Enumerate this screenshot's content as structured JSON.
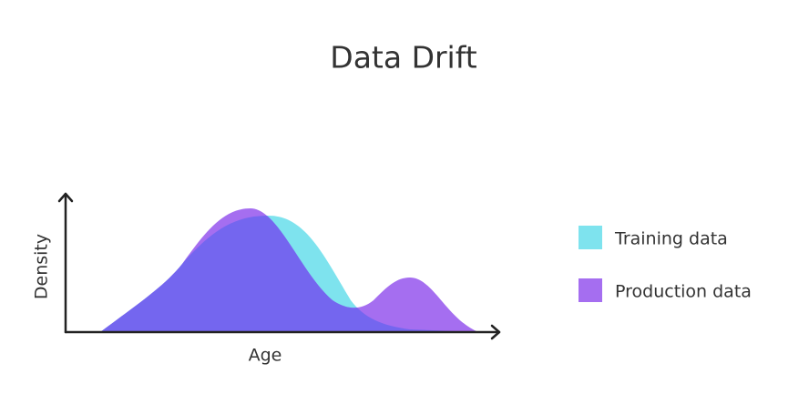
{
  "title": "Data Drift",
  "axes": {
    "y_label": "Density",
    "x_label": "Age"
  },
  "legend": [
    {
      "label": "Training data",
      "color": "#7ee3ee"
    },
    {
      "label": "Production data",
      "color": "#a56ef0"
    }
  ]
}
